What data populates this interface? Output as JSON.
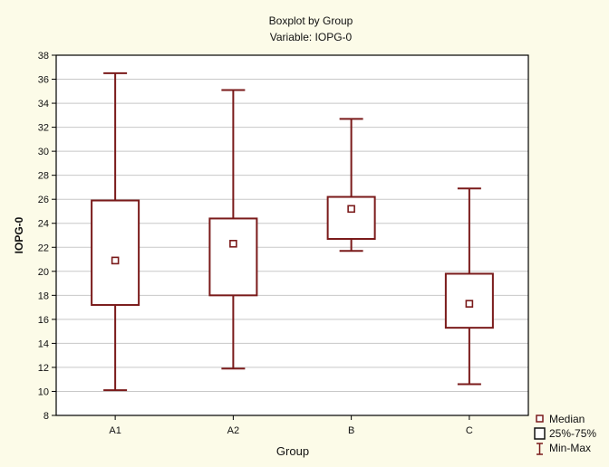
{
  "chart_data": {
    "type": "boxplot",
    "title": "Boxplot by Group",
    "subtitle": "Variable: IOPG-0",
    "xlabel": "Group",
    "ylabel": "IOPG-0",
    "ylim": [
      8,
      38
    ],
    "yticks": [
      8,
      10,
      12,
      14,
      16,
      18,
      20,
      22,
      24,
      26,
      28,
      30,
      32,
      34,
      36,
      38
    ],
    "grid": true,
    "legend_position": "bottom-right",
    "legend": [
      {
        "key": "median",
        "label": "Median"
      },
      {
        "key": "iqr",
        "label": "25%-75%"
      },
      {
        "key": "range",
        "label": "Min-Max"
      }
    ],
    "categories": [
      "A1",
      "A2",
      "B",
      "C"
    ],
    "groups": [
      {
        "category": "A1",
        "min": 10.1,
        "q1": 17.2,
        "median": 20.9,
        "q3": 25.9,
        "max": 36.5
      },
      {
        "category": "A2",
        "min": 11.9,
        "q1": 18.0,
        "median": 22.3,
        "q3": 24.4,
        "max": 35.1
      },
      {
        "category": "B",
        "min": 21.7,
        "q1": 22.7,
        "median": 25.2,
        "q3": 26.2,
        "max": 32.7
      },
      {
        "category": "C",
        "min": 10.6,
        "q1": 15.3,
        "median": 17.3,
        "q3": 19.8,
        "max": 26.9
      }
    ],
    "colors": {
      "box": "#7a1a1a",
      "grid": "#c8c8c8",
      "plot_bg": "#ffffff",
      "page_bg": "#fcfbe8"
    }
  }
}
